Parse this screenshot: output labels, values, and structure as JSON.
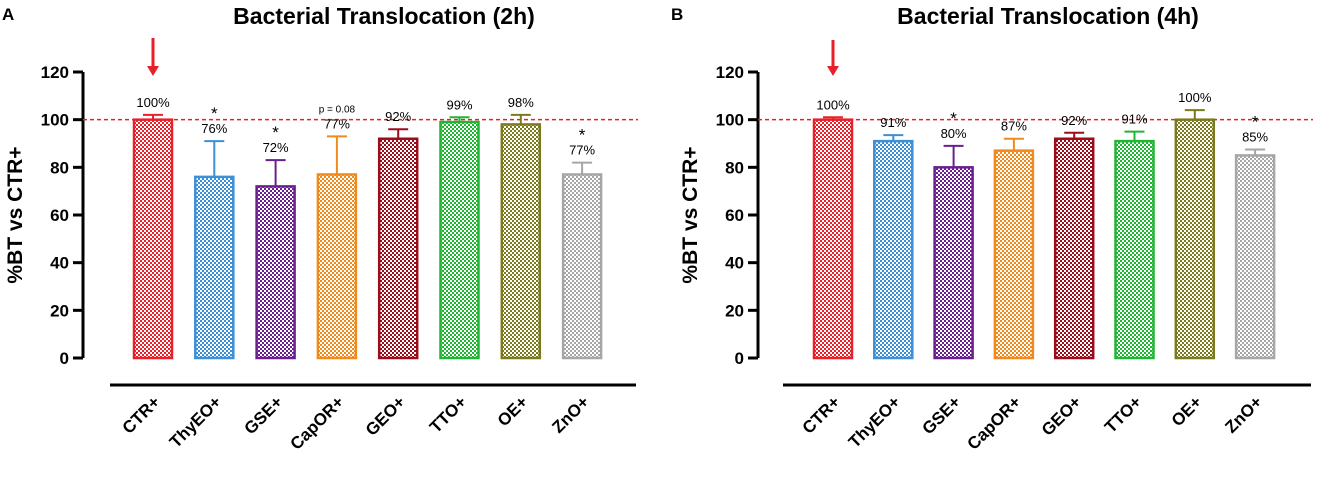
{
  "chart_data": [
    {
      "panel": "A",
      "type": "bar",
      "title": "Bacterial Translocation (2h)",
      "ylabel": "%BT vs CTR+",
      "xlabel": "",
      "ylim": [
        0,
        120
      ],
      "yticks": [
        0,
        20,
        40,
        60,
        80,
        100,
        120
      ],
      "reference_line": 100,
      "categories": [
        "CTR+",
        "ThyEO+",
        "GSE+",
        "CapOR+",
        "GEO+",
        "TTO+",
        "OE+",
        "ZnO+"
      ],
      "values": [
        100,
        76,
        72,
        77,
        92,
        99,
        98,
        77
      ],
      "errors": [
        2,
        15,
        11,
        16,
        4,
        2,
        4,
        5
      ],
      "labels": [
        "100%",
        "76%",
        "72%",
        "77%",
        "92%",
        "99%",
        "98%",
        "77%"
      ],
      "annotations": [
        "",
        "*",
        "*",
        "p = 0.08",
        "",
        "",
        "",
        "*"
      ],
      "highlight_arrow": "CTR+"
    },
    {
      "panel": "B",
      "type": "bar",
      "title": "Bacterial Translocation (4h)",
      "ylabel": "%BT vs CTR+",
      "xlabel": "",
      "ylim": [
        0,
        120
      ],
      "yticks": [
        0,
        20,
        40,
        60,
        80,
        100,
        120
      ],
      "reference_line": 100,
      "categories": [
        "CTR+",
        "ThyEO+",
        "GSE+",
        "CapOR+",
        "GEO+",
        "TTO+",
        "OE+",
        "ZnO+"
      ],
      "values": [
        100,
        91,
        80,
        87,
        92,
        91,
        100,
        85
      ],
      "errors": [
        1,
        2.5,
        9,
        5,
        2.5,
        4,
        4,
        2.5
      ],
      "labels": [
        "100%",
        "91%",
        "80%",
        "87%",
        "92%",
        "91%",
        "100%",
        "85%"
      ],
      "annotations": [
        "",
        "",
        "*",
        "",
        "",
        "",
        "",
        "*"
      ],
      "highlight_arrow": "CTR+"
    }
  ],
  "colors": {
    "series": [
      "#e8202a",
      "#3d8fd6",
      "#6a1f8f",
      "#f08a1c",
      "#9b0d1b",
      "#21b534",
      "#7b7a1c",
      "#a6a6a6"
    ],
    "arrow": "#e8202a",
    "reference_line": "#e8202a",
    "axis": "#000000"
  }
}
